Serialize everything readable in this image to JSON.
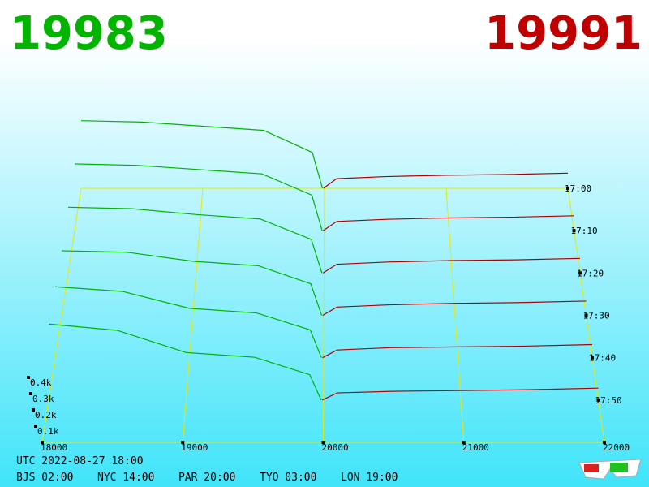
{
  "chart_data": {
    "type": "depth3d",
    "bid_price": 19983,
    "ask_price": 19991,
    "bid_color": "#00b400",
    "ask_color": "#b00000",
    "xlim": [
      18000,
      22000
    ],
    "xticks": [
      18000,
      19000,
      20000,
      21000,
      22000
    ],
    "zlim": [
      0,
      500
    ],
    "zticks": [
      {
        "value": 100,
        "label": "0.1k"
      },
      {
        "value": 200,
        "label": "0.2k"
      },
      {
        "value": 300,
        "label": "0.3k"
      },
      {
        "value": 400,
        "label": "0.4k"
      }
    ],
    "time_ticks": [
      "17:00",
      "17:10",
      "17:20",
      "17:30",
      "17:40",
      "17:50"
    ],
    "bid_prices": [
      18000,
      18500,
      19000,
      19500,
      19900,
      19983
    ],
    "ask_prices": [
      19991,
      20100,
      20500,
      21000,
      21500,
      22000
    ],
    "depth": [
      {
        "bids": [
          490,
          480,
          450,
          420,
          260,
          0
        ],
        "asks": [
          0,
          70,
          85,
          95,
          100,
          110
        ]
      },
      {
        "bids": [
          470,
          460,
          430,
          400,
          250,
          0
        ],
        "asks": [
          0,
          65,
          80,
          90,
          95,
          105
        ]
      },
      {
        "bids": [
          450,
          440,
          400,
          370,
          230,
          0
        ],
        "asks": [
          0,
          60,
          75,
          85,
          90,
          100
        ]
      },
      {
        "bids": [
          430,
          420,
          360,
          330,
          210,
          0
        ],
        "asks": [
          0,
          55,
          70,
          80,
          85,
          95
        ]
      },
      {
        "bids": [
          460,
          430,
          320,
          290,
          180,
          0
        ],
        "asks": [
          0,
          50,
          65,
          70,
          75,
          85
        ]
      },
      {
        "bids": [
          480,
          440,
          300,
          270,
          160,
          0
        ],
        "asks": [
          0,
          45,
          55,
          60,
          65,
          75
        ]
      }
    ],
    "timestamp": "UTC 2022-08-27 18:00",
    "zones": [
      "BJS 02:00",
      "NYC 14:00",
      "PAR 20:00",
      "TYO 03:00",
      "LON 19:00"
    ]
  }
}
